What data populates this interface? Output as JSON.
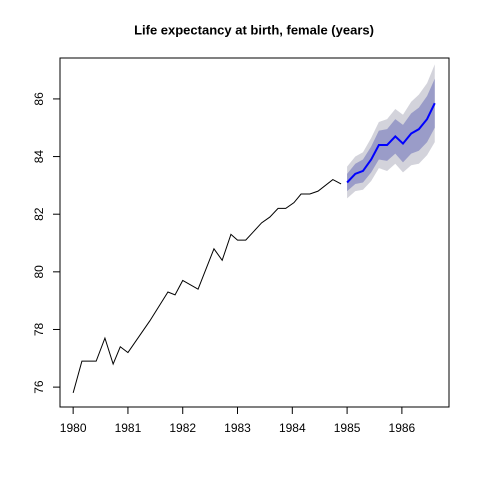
{
  "chart_data": {
    "type": "line",
    "title": "Life expectancy at birth, female (years)",
    "xlim": [
      1979.76,
      1986.86
    ],
    "ylim": [
      75.31,
      87.42
    ],
    "xticks": [
      1980,
      1981,
      1982,
      1983,
      1984,
      1985,
      1986
    ],
    "yticks": [
      76,
      78,
      80,
      82,
      84,
      86
    ],
    "observed": {
      "color": "#000000",
      "x": [
        1980.0,
        1980.16,
        1980.42,
        1980.58,
        1980.73,
        1980.86,
        1981.0,
        1981.4,
        1981.73,
        1981.86,
        1982.0,
        1982.28,
        1982.57,
        1982.72,
        1982.88,
        1983.0,
        1983.15,
        1983.44,
        1983.59,
        1983.74,
        1983.88,
        1984.03,
        1984.16,
        1984.32,
        1984.47,
        1984.74,
        1984.89
      ],
      "values": [
        75.8,
        76.9,
        76.9,
        77.7,
        76.8,
        77.4,
        77.2,
        78.3,
        79.3,
        79.2,
        79.7,
        79.4,
        80.8,
        80.4,
        81.3,
        81.1,
        81.1,
        81.7,
        81.9,
        82.2,
        82.2,
        82.4,
        82.7,
        82.7,
        82.8,
        83.2,
        83.05
      ]
    },
    "forecast": {
      "color": "#0000ff",
      "band_colors": [
        "#9a9cc8",
        "#d3d3db"
      ],
      "x": [
        1985.0,
        1985.15,
        1985.29,
        1985.44,
        1985.58,
        1985.73,
        1985.88,
        1986.02,
        1986.17,
        1986.31,
        1986.46,
        1986.6
      ],
      "values": [
        83.1,
        83.4,
        83.5,
        83.9,
        84.4,
        84.4,
        84.7,
        84.45,
        84.8,
        84.95,
        85.3,
        85.85
      ],
      "lower80": [
        82.8,
        83.05,
        83.1,
        83.45,
        83.9,
        83.85,
        84.1,
        83.8,
        84.1,
        84.2,
        84.5,
        85.0
      ],
      "upper80": [
        83.4,
        83.75,
        83.9,
        84.35,
        84.9,
        84.95,
        85.3,
        85.1,
        85.5,
        85.7,
        86.1,
        86.7
      ],
      "lower95": [
        82.55,
        82.8,
        82.85,
        83.15,
        83.6,
        83.5,
        83.75,
        83.45,
        83.7,
        83.75,
        84.05,
        84.5
      ],
      "upper95": [
        83.65,
        84.0,
        84.15,
        84.65,
        85.2,
        85.3,
        85.65,
        85.45,
        85.9,
        86.15,
        86.55,
        87.2
      ]
    }
  }
}
